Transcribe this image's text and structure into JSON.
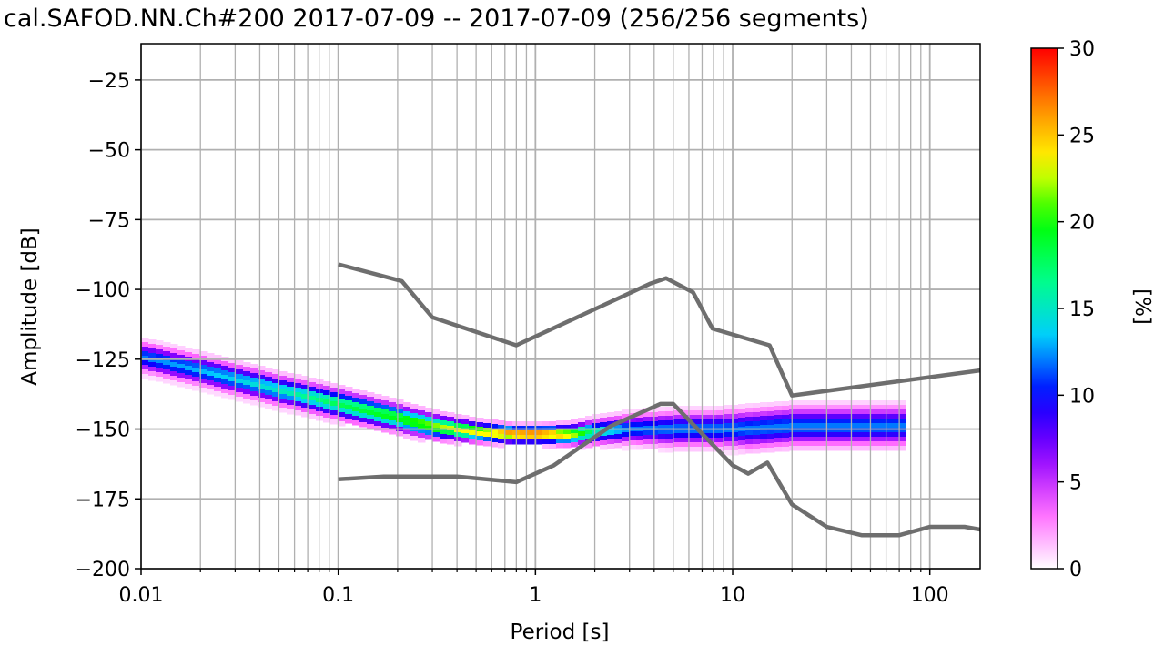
{
  "chart_data": {
    "type": "heatmap",
    "title": "cal.SAFOD.NN.Ch#200   2017-07-09 -- 2017-07-09  (256/256 segments)",
    "xlabel": "Period [s]",
    "ylabel": "Amplitude [dB]",
    "x_scale": "log",
    "xlim": [
      0.01,
      180
    ],
    "ylim": [
      -200,
      -12
    ],
    "grid": true,
    "x_ticks": [
      {
        "value": 0.01,
        "label": "0.01"
      },
      {
        "value": 0.1,
        "label": "0.1"
      },
      {
        "value": 1,
        "label": "1"
      },
      {
        "value": 10,
        "label": "10"
      },
      {
        "value": 100,
        "label": "100"
      }
    ],
    "y_ticks": [
      {
        "value": -25,
        "label": "−25"
      },
      {
        "value": -50,
        "label": "−50"
      },
      {
        "value": -75,
        "label": "−75"
      },
      {
        "value": -100,
        "label": "−100"
      },
      {
        "value": -125,
        "label": "−125"
      },
      {
        "value": -150,
        "label": "−150"
      },
      {
        "value": -175,
        "label": "−175"
      },
      {
        "value": -200,
        "label": "−200"
      }
    ],
    "colorbar": {
      "label": "[%]",
      "range": [
        0,
        30
      ],
      "ticks": [
        {
          "value": 0,
          "label": "0"
        },
        {
          "value": 5,
          "label": "5"
        },
        {
          "value": 10,
          "label": "10"
        },
        {
          "value": 15,
          "label": "15"
        },
        {
          "value": 20,
          "label": "20"
        },
        {
          "value": 25,
          "label": "25"
        },
        {
          "value": 30,
          "label": "30"
        }
      ],
      "colors": [
        "#ffffff",
        "#ff66ff",
        "#8800ff",
        "#0000ff",
        "#00ccff",
        "#00ff88",
        "#00ff00",
        "#ffff00",
        "#ff8800",
        "#ff0000"
      ]
    },
    "density_band": {
      "x": [
        0.01,
        0.02,
        0.05,
        0.1,
        0.2,
        0.3,
        0.5,
        0.8,
        1,
        1.5,
        2,
        3,
        5,
        8,
        12,
        20,
        40,
        70
      ],
      "center": [
        -124,
        -129,
        -136,
        -141,
        -146,
        -149,
        -151,
        -152,
        -152,
        -152,
        -151,
        -150,
        -150,
        -150,
        -150,
        -149,
        -149,
        -149
      ],
      "halfwidth": [
        5,
        5,
        5,
        5,
        4.5,
        4,
        3,
        2.5,
        2.5,
        3,
        4,
        5,
        6,
        6,
        7,
        7,
        7,
        7
      ],
      "peak_percent": [
        12,
        13,
        15,
        18,
        20,
        22,
        24,
        28,
        29,
        24,
        16,
        12,
        12,
        12,
        12,
        12,
        12,
        12
      ],
      "x_end": 70
    },
    "series": [
      {
        "color": "#6e6e6e",
        "x": [
          0.1,
          0.21,
          0.3,
          0.8,
          3.8,
          4.6,
          6.3,
          7.9,
          15.4,
          20,
          180
        ],
        "y": [
          -91,
          -97,
          -110,
          -120,
          -98,
          -96,
          -101,
          -114,
          -120,
          -138,
          -129
        ]
      },
      {
        "color": "#6e6e6e",
        "x": [
          0.1,
          0.17,
          0.4,
          0.8,
          1.24,
          2.4,
          4.3,
          5,
          10,
          12,
          15,
          20,
          30,
          45,
          70,
          100,
          150,
          180
        ],
        "y": [
          -168,
          -167,
          -167,
          -169,
          -163,
          -149,
          -141,
          -141,
          -163,
          -166,
          -162,
          -177,
          -185,
          -188,
          -188,
          -185,
          -185,
          -186
        ]
      }
    ]
  }
}
